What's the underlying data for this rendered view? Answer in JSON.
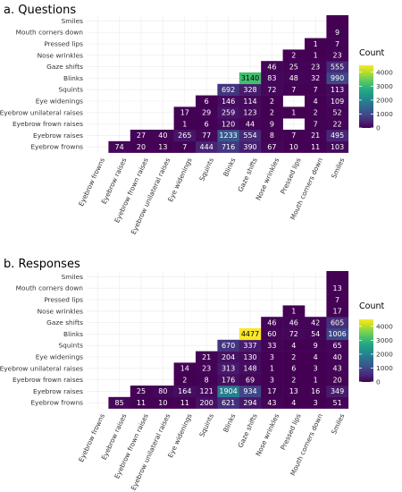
{
  "chart_data": [
    {
      "type": "heatmap",
      "title": "a. Questions",
      "categories": [
        "Eyebrow frowns",
        "Eyebrow raises",
        "Eyebrow frown raises",
        "Eyebrow unilateral raises",
        "Eye widenings",
        "Squints",
        "Blinks",
        "Gaze shifts",
        "Nose wrinkles",
        "Pressed lips",
        "Mouth corners down",
        "Smiles"
      ],
      "cells": [
        [
          "Eyebrow frowns",
          "Eyebrow raises",
          74
        ],
        [
          "Eyebrow frowns",
          "Eyebrow frown raises",
          20
        ],
        [
          "Eyebrow frowns",
          "Eyebrow unilateral raises",
          13
        ],
        [
          "Eyebrow frowns",
          "Eye widenings",
          7
        ],
        [
          "Eyebrow frowns",
          "Squints",
          444
        ],
        [
          "Eyebrow frowns",
          "Blinks",
          716
        ],
        [
          "Eyebrow frowns",
          "Gaze shifts",
          390
        ],
        [
          "Eyebrow frowns",
          "Nose wrinkles",
          67
        ],
        [
          "Eyebrow frowns",
          "Pressed lips",
          10
        ],
        [
          "Eyebrow frowns",
          "Mouth corners down",
          11
        ],
        [
          "Eyebrow frowns",
          "Smiles",
          103
        ],
        [
          "Eyebrow raises",
          "Eyebrow frown raises",
          27
        ],
        [
          "Eyebrow raises",
          "Eyebrow unilateral raises",
          40
        ],
        [
          "Eyebrow raises",
          "Eye widenings",
          265
        ],
        [
          "Eyebrow raises",
          "Squints",
          77
        ],
        [
          "Eyebrow raises",
          "Blinks",
          1233
        ],
        [
          "Eyebrow raises",
          "Gaze shifts",
          554
        ],
        [
          "Eyebrow raises",
          "Nose wrinkles",
          8
        ],
        [
          "Eyebrow raises",
          "Pressed lips",
          7
        ],
        [
          "Eyebrow raises",
          "Mouth corners down",
          21
        ],
        [
          "Eyebrow raises",
          "Smiles",
          495
        ],
        [
          "Eyebrow frown raises",
          "Eye widenings",
          1
        ],
        [
          "Eyebrow frown raises",
          "Squints",
          6
        ],
        [
          "Eyebrow frown raises",
          "Blinks",
          120
        ],
        [
          "Eyebrow frown raises",
          "Gaze shifts",
          44
        ],
        [
          "Eyebrow frown raises",
          "Nose wrinkles",
          9
        ],
        [
          "Eyebrow frown raises",
          "Mouth corners down",
          7
        ],
        [
          "Eyebrow frown raises",
          "Smiles",
          22
        ],
        [
          "Eyebrow unilateral raises",
          "Eye widenings",
          17
        ],
        [
          "Eyebrow unilateral raises",
          "Squints",
          29
        ],
        [
          "Eyebrow unilateral raises",
          "Blinks",
          259
        ],
        [
          "Eyebrow unilateral raises",
          "Gaze shifts",
          123
        ],
        [
          "Eyebrow unilateral raises",
          "Nose wrinkles",
          2
        ],
        [
          "Eyebrow unilateral raises",
          "Pressed lips",
          1
        ],
        [
          "Eyebrow unilateral raises",
          "Mouth corners down",
          2
        ],
        [
          "Eyebrow unilateral raises",
          "Smiles",
          52
        ],
        [
          "Eye widenings",
          "Squints",
          6
        ],
        [
          "Eye widenings",
          "Blinks",
          146
        ],
        [
          "Eye widenings",
          "Gaze shifts",
          114
        ],
        [
          "Eye widenings",
          "Nose wrinkles",
          2
        ],
        [
          "Eye widenings",
          "Mouth corners down",
          4
        ],
        [
          "Eye widenings",
          "Smiles",
          109
        ],
        [
          "Squints",
          "Blinks",
          692
        ],
        [
          "Squints",
          "Gaze shifts",
          328
        ],
        [
          "Squints",
          "Nose wrinkles",
          72
        ],
        [
          "Squints",
          "Pressed lips",
          7
        ],
        [
          "Squints",
          "Mouth corners down",
          7
        ],
        [
          "Squints",
          "Smiles",
          113
        ],
        [
          "Blinks",
          "Gaze shifts",
          3140
        ],
        [
          "Blinks",
          "Nose wrinkles",
          83
        ],
        [
          "Blinks",
          "Pressed lips",
          48
        ],
        [
          "Blinks",
          "Mouth corners down",
          32
        ],
        [
          "Blinks",
          "Smiles",
          990
        ],
        [
          "Gaze shifts",
          "Nose wrinkles",
          46
        ],
        [
          "Gaze shifts",
          "Pressed lips",
          25
        ],
        [
          "Gaze shifts",
          "Mouth corners down",
          23
        ],
        [
          "Gaze shifts",
          "Smiles",
          555
        ],
        [
          "Nose wrinkles",
          "Pressed lips",
          2
        ],
        [
          "Nose wrinkles",
          "Mouth corners down",
          1
        ],
        [
          "Nose wrinkles",
          "Smiles",
          23
        ],
        [
          "Pressed lips",
          "Mouth corners down",
          1
        ],
        [
          "Pressed lips",
          "Smiles",
          7
        ],
        [
          "Mouth corners down",
          "Smiles",
          9
        ],
        [
          "Smiles",
          "Smiles",
          null
        ]
      ],
      "legend": {
        "title": "Count",
        "ticks": [
          0,
          1000,
          2000,
          3000,
          4000
        ],
        "range": [
          0,
          4500
        ]
      }
    },
    {
      "type": "heatmap",
      "title": "b. Responses",
      "categories": [
        "Eyebrow frowns",
        "Eyebrow raises",
        "Eyebrow frown raises",
        "Eyebrow unilateral raises",
        "Eye widenings",
        "Squints",
        "Blinks",
        "Gaze shifts",
        "Nose wrinkles",
        "Pressed lips",
        "Mouth corners down",
        "Smiles"
      ],
      "cells": [
        [
          "Eyebrow frowns",
          "Eyebrow raises",
          85
        ],
        [
          "Eyebrow frowns",
          "Eyebrow frown raises",
          11
        ],
        [
          "Eyebrow frowns",
          "Eyebrow unilateral raises",
          10
        ],
        [
          "Eyebrow frowns",
          "Eye widenings",
          11
        ],
        [
          "Eyebrow frowns",
          "Squints",
          200
        ],
        [
          "Eyebrow frowns",
          "Blinks",
          621
        ],
        [
          "Eyebrow frowns",
          "Gaze shifts",
          294
        ],
        [
          "Eyebrow frowns",
          "Nose wrinkles",
          43
        ],
        [
          "Eyebrow frowns",
          "Pressed lips",
          4
        ],
        [
          "Eyebrow frowns",
          "Mouth corners down",
          3
        ],
        [
          "Eyebrow frowns",
          "Smiles",
          51
        ],
        [
          "Eyebrow raises",
          "Eyebrow frown raises",
          25
        ],
        [
          "Eyebrow raises",
          "Eyebrow unilateral raises",
          80
        ],
        [
          "Eyebrow raises",
          "Eye widenings",
          164
        ],
        [
          "Eyebrow raises",
          "Squints",
          121
        ],
        [
          "Eyebrow raises",
          "Blinks",
          1904
        ],
        [
          "Eyebrow raises",
          "Gaze shifts",
          934
        ],
        [
          "Eyebrow raises",
          "Nose wrinkles",
          17
        ],
        [
          "Eyebrow raises",
          "Pressed lips",
          13
        ],
        [
          "Eyebrow raises",
          "Mouth corners down",
          16
        ],
        [
          "Eyebrow raises",
          "Smiles",
          349
        ],
        [
          "Eyebrow frown raises",
          "Eye widenings",
          2
        ],
        [
          "Eyebrow frown raises",
          "Squints",
          8
        ],
        [
          "Eyebrow frown raises",
          "Blinks",
          176
        ],
        [
          "Eyebrow frown raises",
          "Gaze shifts",
          69
        ],
        [
          "Eyebrow frown raises",
          "Nose wrinkles",
          3
        ],
        [
          "Eyebrow frown raises",
          "Pressed lips",
          2
        ],
        [
          "Eyebrow frown raises",
          "Mouth corners down",
          1
        ],
        [
          "Eyebrow frown raises",
          "Smiles",
          20
        ],
        [
          "Eyebrow unilateral raises",
          "Eye widenings",
          14
        ],
        [
          "Eyebrow unilateral raises",
          "Squints",
          23
        ],
        [
          "Eyebrow unilateral raises",
          "Blinks",
          313
        ],
        [
          "Eyebrow unilateral raises",
          "Gaze shifts",
          148
        ],
        [
          "Eyebrow unilateral raises",
          "Nose wrinkles",
          1
        ],
        [
          "Eyebrow unilateral raises",
          "Pressed lips",
          6
        ],
        [
          "Eyebrow unilateral raises",
          "Mouth corners down",
          3
        ],
        [
          "Eyebrow unilateral raises",
          "Smiles",
          43
        ],
        [
          "Eye widenings",
          "Squints",
          21
        ],
        [
          "Eye widenings",
          "Blinks",
          204
        ],
        [
          "Eye widenings",
          "Gaze shifts",
          130
        ],
        [
          "Eye widenings",
          "Nose wrinkles",
          3
        ],
        [
          "Eye widenings",
          "Pressed lips",
          2
        ],
        [
          "Eye widenings",
          "Mouth corners down",
          4
        ],
        [
          "Eye widenings",
          "Smiles",
          40
        ],
        [
          "Squints",
          "Blinks",
          670
        ],
        [
          "Squints",
          "Gaze shifts",
          337
        ],
        [
          "Squints",
          "Nose wrinkles",
          33
        ],
        [
          "Squints",
          "Pressed lips",
          4
        ],
        [
          "Squints",
          "Mouth corners down",
          9
        ],
        [
          "Squints",
          "Smiles",
          65
        ],
        [
          "Blinks",
          "Gaze shifts",
          4477
        ],
        [
          "Blinks",
          "Nose wrinkles",
          60
        ],
        [
          "Blinks",
          "Pressed lips",
          72
        ],
        [
          "Blinks",
          "Mouth corners down",
          54
        ],
        [
          "Blinks",
          "Smiles",
          1006
        ],
        [
          "Gaze shifts",
          "Nose wrinkles",
          46
        ],
        [
          "Gaze shifts",
          "Pressed lips",
          46
        ],
        [
          "Gaze shifts",
          "Mouth corners down",
          42
        ],
        [
          "Gaze shifts",
          "Smiles",
          605
        ],
        [
          "Nose wrinkles",
          "Pressed lips",
          1
        ],
        [
          "Nose wrinkles",
          "Smiles",
          17
        ],
        [
          "Pressed lips",
          "Smiles",
          7
        ],
        [
          "Mouth corners down",
          "Smiles",
          13
        ],
        [
          "Smiles",
          "Smiles",
          null
        ]
      ],
      "legend": {
        "title": "Count",
        "ticks": [
          0,
          1000,
          2000,
          3000,
          4000
        ],
        "range": [
          0,
          4500
        ]
      }
    }
  ]
}
